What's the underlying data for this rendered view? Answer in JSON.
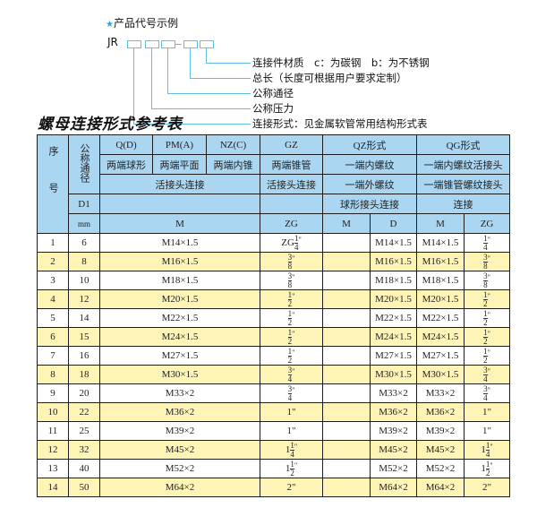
{
  "legend": {
    "title": "产品代号示例",
    "star_icon": "star",
    "code_prefix": "JR",
    "labels": [
      "连接件材质　c：为碳钢　b：为不锈钢",
      "总长（长度可根据用户要求定制）",
      "公称通径",
      "公称压力",
      "连接形式：见金属软管常用结构形式表"
    ],
    "line_color": "#5cc0e0"
  },
  "table_title": "螺母连接形式参考表",
  "header": {
    "seq": "序号",
    "nominal": "公称通径",
    "d1": "D1",
    "mm": "mm",
    "types": [
      "Q(D)",
      "PM(A)",
      "NZ(C)",
      "GZ",
      "QZ形式",
      "QG形式"
    ],
    "names": [
      "两端球形",
      "两端平面",
      "两端内锥",
      "两端锥管",
      "一端内螺纹",
      "一端内螺纹活接头"
    ],
    "row3": [
      "活接头连接",
      "活接头连接",
      "一端外螺纹",
      "一端锥管螺纹接头"
    ],
    "row4": [
      "球形接头连接",
      "连接"
    ],
    "units": [
      "M",
      "ZG",
      "M",
      "D",
      "M",
      "ZG"
    ]
  },
  "colors": {
    "header_bg": "#aad6f1",
    "alt_row_bg": "#fdf4b6",
    "border": "#1d1d1d"
  },
  "rows": [
    {
      "no": "1",
      "dn": "6",
      "m": "M14×1.5",
      "gz": {
        "pre": "ZG",
        "w": "",
        "n": "1",
        "d": "4",
        "s": "\""
      },
      "qz_m": "",
      "qz_d": "M14×1.5",
      "qg_m": "M14×1.5",
      "qg_zg": {
        "pre": "",
        "w": "",
        "n": "1",
        "d": "4",
        "s": "\""
      }
    },
    {
      "no": "2",
      "dn": "8",
      "m": "M16×1.5",
      "gz": {
        "pre": "",
        "w": "",
        "n": "3",
        "d": "8",
        "s": "\""
      },
      "qz_m": "",
      "qz_d": "M16×1.5",
      "qg_m": "M16×1.5",
      "qg_zg": {
        "pre": "",
        "w": "",
        "n": "3",
        "d": "8",
        "s": "\""
      }
    },
    {
      "no": "3",
      "dn": "10",
      "m": "M18×1.5",
      "gz": {
        "pre": "",
        "w": "",
        "n": "3",
        "d": "8",
        "s": "\""
      },
      "qz_m": "",
      "qz_d": "M18×1.5",
      "qg_m": "M18×1.5",
      "qg_zg": {
        "pre": "",
        "w": "",
        "n": "3",
        "d": "8",
        "s": "\""
      }
    },
    {
      "no": "4",
      "dn": "12",
      "m": "M20×1.5",
      "gz": {
        "pre": "",
        "w": "",
        "n": "1",
        "d": "2",
        "s": "\""
      },
      "qz_m": "",
      "qz_d": "M20×1.5",
      "qg_m": "M20×1.5",
      "qg_zg": {
        "pre": "",
        "w": "",
        "n": "1",
        "d": "2",
        "s": "\""
      }
    },
    {
      "no": "5",
      "dn": "14",
      "m": "M22×1.5",
      "gz": {
        "pre": "",
        "w": "",
        "n": "1",
        "d": "2",
        "s": "\""
      },
      "qz_m": "",
      "qz_d": "M22×1.5",
      "qg_m": "M22×1.5",
      "qg_zg": {
        "pre": "",
        "w": "",
        "n": "1",
        "d": "2",
        "s": "\""
      }
    },
    {
      "no": "6",
      "dn": "15",
      "m": "M24×1.5",
      "gz": {
        "pre": "",
        "w": "",
        "n": "1",
        "d": "2",
        "s": "\""
      },
      "qz_m": "",
      "qz_d": "M24×1.5",
      "qg_m": "M24×1.5",
      "qg_zg": {
        "pre": "",
        "w": "",
        "n": "1",
        "d": "2",
        "s": "\""
      }
    },
    {
      "no": "7",
      "dn": "16",
      "m": "M27×1.5",
      "gz": {
        "pre": "",
        "w": "",
        "n": "1",
        "d": "2",
        "s": "\""
      },
      "qz_m": "",
      "qz_d": "M27×1.5",
      "qg_m": "M27×1.5",
      "qg_zg": {
        "pre": "",
        "w": "",
        "n": "1",
        "d": "2",
        "s": "\""
      }
    },
    {
      "no": "8",
      "dn": "18",
      "m": "M30×1.5",
      "gz": {
        "pre": "",
        "w": "",
        "n": "3",
        "d": "4",
        "s": "\""
      },
      "qz_m": "",
      "qz_d": "M30×1.5",
      "qg_m": "M30×1.5",
      "qg_zg": {
        "pre": "",
        "w": "",
        "n": "3",
        "d": "4",
        "s": "\""
      }
    },
    {
      "no": "9",
      "dn": "20",
      "m": "M33×2",
      "gz": {
        "pre": "",
        "w": "",
        "n": "3",
        "d": "4",
        "s": "\""
      },
      "qz_m": "",
      "qz_d": "M33×2",
      "qg_m": "M33×2",
      "qg_zg": {
        "pre": "",
        "w": "",
        "n": "3",
        "d": "4",
        "s": "\""
      }
    },
    {
      "no": "10",
      "dn": "22",
      "m": "M36×2",
      "gz": {
        "pre": "1\"",
        "w": "",
        "n": "",
        "d": "",
        "s": ""
      },
      "qz_m": "",
      "qz_d": "M36×2",
      "qg_m": "M36×2",
      "qg_zg": {
        "pre": "1\"",
        "w": "",
        "n": "",
        "d": "",
        "s": ""
      }
    },
    {
      "no": "11",
      "dn": "25",
      "m": "M39×2",
      "gz": {
        "pre": "1\"",
        "w": "",
        "n": "",
        "d": "",
        "s": ""
      },
      "qz_m": "",
      "qz_d": "M39×2",
      "qg_m": "M39×2",
      "qg_zg": {
        "pre": "1\"",
        "w": "",
        "n": "",
        "d": "",
        "s": ""
      }
    },
    {
      "no": "12",
      "dn": "32",
      "m": "M45×2",
      "gz": {
        "pre": "",
        "w": "1",
        "n": "1",
        "d": "4",
        "s": "\""
      },
      "qz_m": "",
      "qz_d": "M45×2",
      "qg_m": "M45×2",
      "qg_zg": {
        "pre": "",
        "w": "1",
        "n": "1",
        "d": "4",
        "s": "\""
      }
    },
    {
      "no": "13",
      "dn": "40",
      "m": "M52×2",
      "gz": {
        "pre": "",
        "w": "1",
        "n": "1",
        "d": "2",
        "s": "\""
      },
      "qz_m": "",
      "qz_d": "M52×2",
      "qg_m": "M52×2",
      "qg_zg": {
        "pre": "",
        "w": "1",
        "n": "1",
        "d": "2",
        "s": "\""
      }
    },
    {
      "no": "14",
      "dn": "50",
      "m": "M64×2",
      "gz": {
        "pre": "2\"",
        "w": "",
        "n": "",
        "d": "",
        "s": ""
      },
      "qz_m": "",
      "qz_d": "M64×2",
      "qg_m": "M64×2",
      "qg_zg": {
        "pre": "2\"",
        "w": "",
        "n": "",
        "d": "",
        "s": ""
      }
    }
  ]
}
